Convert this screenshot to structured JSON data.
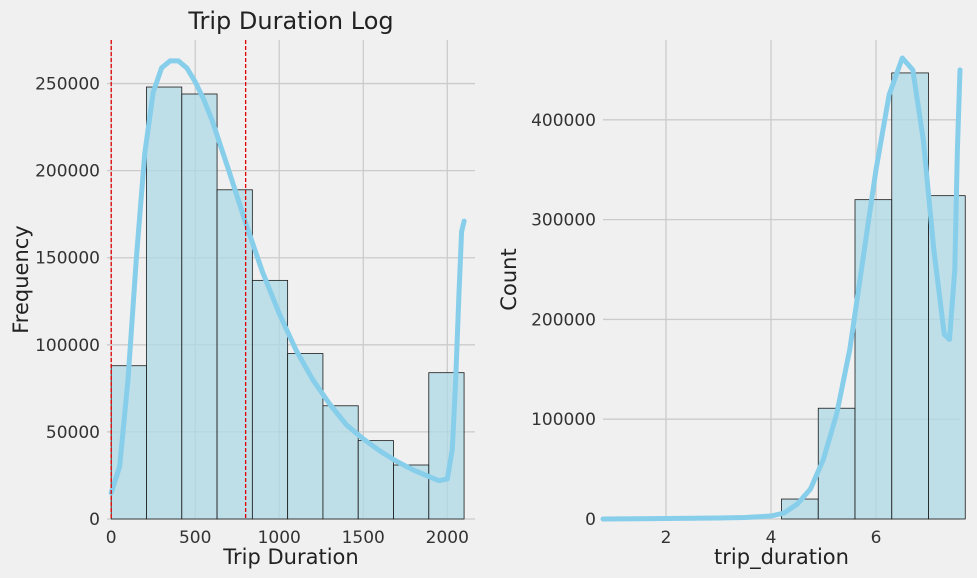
{
  "chart_data": [
    {
      "type": "bar",
      "title": "Trip Duration Log",
      "xlabel": "Trip Duration",
      "ylabel": "Frequency",
      "xlim": [
        -25,
        2165
      ],
      "ylim": [
        0,
        275000
      ],
      "xticks": [
        0,
        500,
        1000,
        1500,
        2000
      ],
      "yticks": [
        0,
        50000,
        100000,
        150000,
        200000,
        250000
      ],
      "grid": true,
      "bin_edges": [
        0,
        210,
        420,
        630,
        840,
        1050,
        1260,
        1470,
        1680,
        1890,
        2100
      ],
      "values": [
        88000,
        248000,
        244000,
        189000,
        137000,
        95000,
        65000,
        45000,
        31000,
        84000
      ],
      "kde": {
        "x": [
          0,
          50,
          100,
          150,
          200,
          250,
          300,
          350,
          400,
          450,
          500,
          550,
          600,
          700,
          800,
          900,
          1000,
          1100,
          1200,
          1300,
          1400,
          1500,
          1600,
          1700,
          1800,
          1900,
          1950,
          2000,
          2030,
          2050,
          2070,
          2085,
          2100
        ],
        "y": [
          15000,
          30000,
          80000,
          150000,
          210000,
          245000,
          259000,
          263000,
          263000,
          259000,
          251000,
          241000,
          229000,
          200000,
          170000,
          142000,
          118000,
          97000,
          80000,
          66000,
          54000,
          46000,
          39000,
          33000,
          28000,
          24000,
          22000,
          23000,
          40000,
          80000,
          130000,
          165000,
          171000
        ]
      },
      "vlines": [
        0,
        800
      ]
    },
    {
      "type": "bar",
      "title": "",
      "xlabel": "trip_duration",
      "ylabel": "Count",
      "xlim": [
        0.8,
        7.6
      ],
      "ylim": [
        0,
        480000
      ],
      "xticks": [
        2,
        4,
        6
      ],
      "yticks": [
        0,
        100000,
        200000,
        300000,
        400000
      ],
      "grid": true,
      "bin_edges": [
        4.2,
        4.9,
        5.6,
        6.3,
        7.0,
        7.7
      ],
      "values": [
        20000,
        111000,
        320000,
        447000,
        324000
      ],
      "kde": {
        "x": [
          0.8,
          1.5,
          2.0,
          2.5,
          3.0,
          3.5,
          4.0,
          4.25,
          4.5,
          4.75,
          5.0,
          5.25,
          5.5,
          5.75,
          6.0,
          6.25,
          6.5,
          6.7,
          6.9,
          7.1,
          7.3,
          7.4,
          7.5,
          7.55,
          7.6
        ],
        "y": [
          0,
          300,
          500,
          700,
          1000,
          1500,
          3000,
          6000,
          15000,
          30000,
          60000,
          105000,
          170000,
          260000,
          350000,
          425000,
          462000,
          450000,
          380000,
          270000,
          185000,
          180000,
          250000,
          370000,
          450000
        ]
      }
    }
  ]
}
